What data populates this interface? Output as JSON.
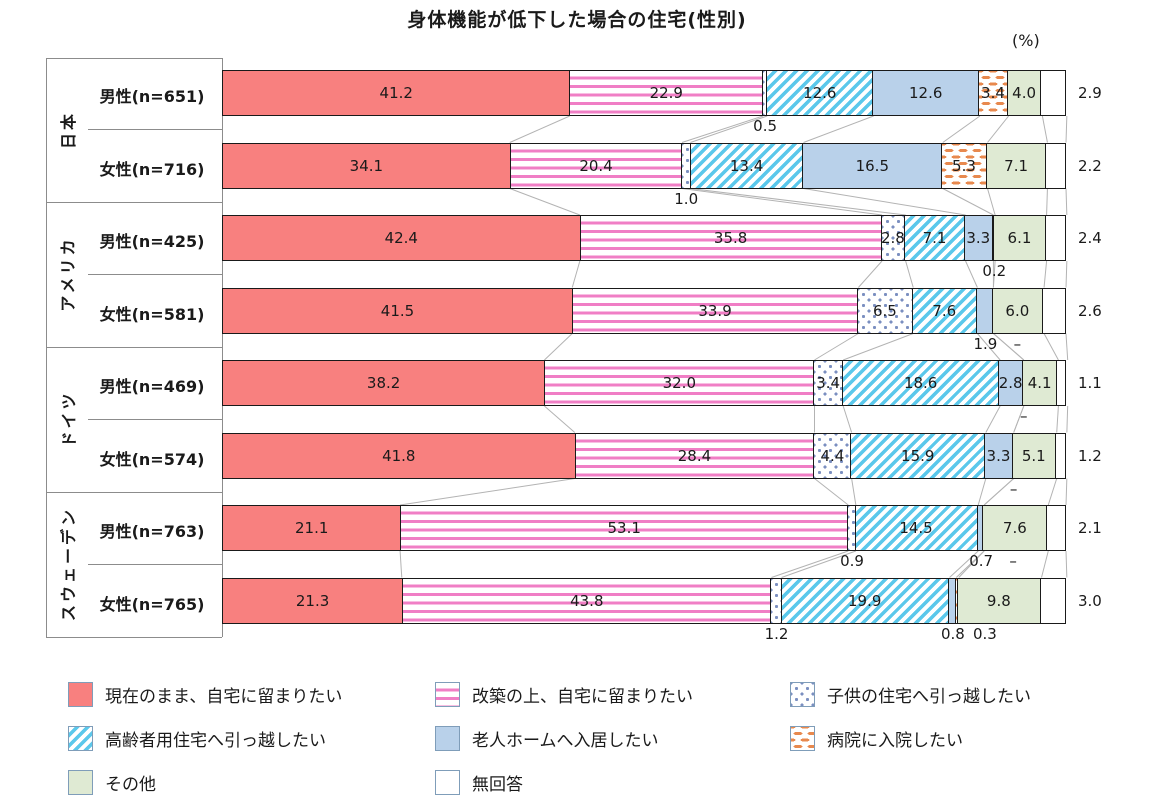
{
  "chart_data": {
    "type": "bar",
    "variant": "stacked-horizontal",
    "title": "身体機能が低下した場合の住宅(性別)",
    "unit_label": "(%)",
    "xlim": [
      0,
      100
    ],
    "legend_position": "bottom",
    "missing_value_mark": "–",
    "categories": [
      {
        "key": "stay_current",
        "label": "現在のまま、自宅に留まりたい",
        "pattern": "p-red"
      },
      {
        "key": "renovate",
        "label": "改築の上、自宅に留まりたい",
        "pattern": "p-pink"
      },
      {
        "key": "children_home",
        "label": "子供の住宅へ引っ越したい",
        "pattern": "p-dots"
      },
      {
        "key": "elderly_housing",
        "label": "高齢者用住宅へ引っ越したい",
        "pattern": "p-diag"
      },
      {
        "key": "nursing_home",
        "label": "老人ホームへ入居したい",
        "pattern": "p-blue"
      },
      {
        "key": "hospital",
        "label": "病院に入院したい",
        "pattern": "p-dash"
      },
      {
        "key": "other",
        "label": "その他",
        "pattern": "p-green"
      },
      {
        "key": "no_answer",
        "label": "無回答",
        "pattern": "p-white"
      }
    ],
    "legend_rows": [
      [
        0,
        1,
        2
      ],
      [
        3,
        4,
        5
      ],
      [
        6,
        7
      ]
    ],
    "groups": [
      {
        "country": "日本",
        "rows": [
          {
            "label": "男性(n=651)",
            "values": [
              41.2,
              22.9,
              0.5,
              12.6,
              12.6,
              3.4,
              4.0,
              2.9
            ],
            "value_labels": [
              "41.2",
              "22.9",
              "0.5",
              "12.6",
              "12.6",
              "3.4",
              "4.0",
              "2.9"
            ],
            "placement": [
              "inside",
              "inside",
              "below",
              "inside",
              "inside",
              "inside",
              "inside",
              "outside"
            ]
          },
          {
            "label": "女性(n=716)",
            "values": [
              34.1,
              20.4,
              1.0,
              13.4,
              16.5,
              5.3,
              7.1,
              2.2
            ],
            "value_labels": [
              "34.1",
              "20.4",
              "1.0",
              "13.4",
              "16.5",
              "5.3",
              "7.1",
              "2.2"
            ],
            "placement": [
              "inside",
              "inside",
              "below",
              "inside",
              "inside",
              "inside",
              "inside",
              "outside"
            ]
          }
        ]
      },
      {
        "country": "アメリカ",
        "rows": [
          {
            "label": "男性(n=425)",
            "values": [
              42.4,
              35.8,
              2.8,
              7.1,
              3.3,
              0.2,
              6.1,
              2.4
            ],
            "value_labels": [
              "42.4",
              "35.8",
              "2.8",
              "7.1",
              "3.3",
              "0.2",
              "6.1",
              "2.4"
            ],
            "placement": [
              "inside",
              "inside",
              "inside",
              "inside",
              "inside",
              "below",
              "inside",
              "outside"
            ]
          },
          {
            "label": "女性(n=581)",
            "values": [
              41.5,
              33.9,
              6.5,
              7.6,
              1.9,
              0,
              6.0,
              2.6
            ],
            "value_labels": [
              "41.5",
              "33.9",
              "6.5",
              "7.6",
              "1.9",
              "–",
              "6.0",
              "2.6"
            ],
            "placement": [
              "inside",
              "inside",
              "inside",
              "inside",
              "below",
              "below",
              "inside",
              "outside"
            ]
          }
        ]
      },
      {
        "country": "ドイツ",
        "rows": [
          {
            "label": "男性(n=469)",
            "values": [
              38.2,
              32.0,
              3.4,
              18.6,
              2.8,
              0,
              4.1,
              1.1
            ],
            "value_labels": [
              "38.2",
              "32.0",
              "3.4",
              "18.6",
              "2.8",
              "–",
              "4.1",
              "1.1"
            ],
            "placement": [
              "inside",
              "inside",
              "inside",
              "inside",
              "inside",
              "below",
              "inside",
              "outside"
            ]
          },
          {
            "label": "女性(n=574)",
            "values": [
              41.8,
              28.4,
              4.4,
              15.9,
              3.3,
              0,
              5.1,
              1.2
            ],
            "value_labels": [
              "41.8",
              "28.4",
              "4.4",
              "15.9",
              "3.3",
              "–",
              "5.1",
              "1.2"
            ],
            "placement": [
              "inside",
              "inside",
              "inside",
              "inside",
              "inside",
              "below",
              "inside",
              "outside"
            ]
          }
        ]
      },
      {
        "country": "スウェーデン",
        "rows": [
          {
            "label": "男性(n=763)",
            "values": [
              21.1,
              53.1,
              0.9,
              14.5,
              0.7,
              0,
              7.6,
              2.1
            ],
            "value_labels": [
              "21.1",
              "53.1",
              "0.9",
              "14.5",
              "0.7",
              "–",
              "7.6",
              "2.1"
            ],
            "placement": [
              "inside",
              "inside",
              "below",
              "inside",
              "below",
              "below",
              "inside",
              "outside"
            ]
          },
          {
            "label": "女性(n=765)",
            "values": [
              21.3,
              43.8,
              1.2,
              19.9,
              0.8,
              0.3,
              9.8,
              3.0
            ],
            "value_labels": [
              "21.3",
              "43.8",
              "1.2",
              "19.9",
              "0.8",
              "0.3",
              "9.8",
              "3.0"
            ],
            "placement": [
              "inside",
              "inside",
              "below",
              "inside",
              "below",
              "below",
              "inside",
              "outside"
            ]
          }
        ]
      }
    ],
    "colors": {
      "red": "#F8807F",
      "pink": "#F07EC5",
      "dot_blue": "#7B8FC0",
      "cyan": "#5BC8EB",
      "light_blue": "#B9D1EA",
      "orange": "#E8894E",
      "green": "#DFEAD3",
      "white": "#FFFFFF",
      "bar_border": "#1A1A1A",
      "axis_gray": "#8C8C8C",
      "connector_gray": "#B3B3B3",
      "legend_swatch_border": "#7F9DB9"
    }
  }
}
